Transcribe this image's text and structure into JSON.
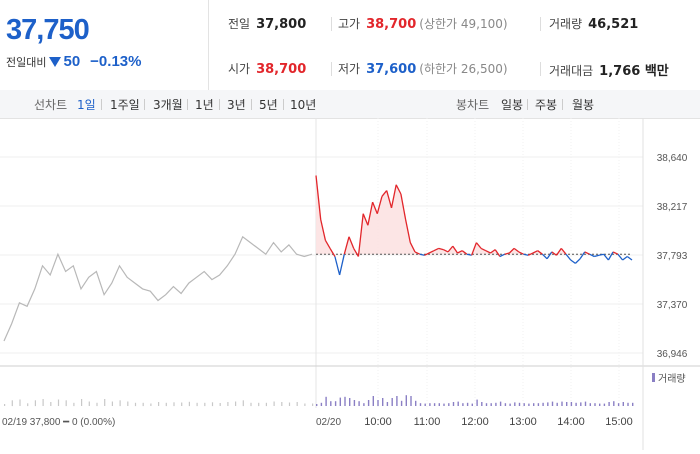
{
  "header": {
    "price": "37,750",
    "change_label": "전일대비",
    "change_value": "50",
    "change_percent": "−0.13%",
    "stats": {
      "prev_close": {
        "label": "전일",
        "value": "37,800"
      },
      "high": {
        "label": "고가",
        "value": "38,700",
        "sub": "(상한가 49,100)"
      },
      "volume": {
        "label": "거래량",
        "value": "46,521"
      },
      "open": {
        "label": "시가",
        "value": "38,700"
      },
      "low": {
        "label": "저가",
        "value": "37,600",
        "sub": "(하한가 26,500)"
      },
      "amount": {
        "label": "거래대금",
        "value": "1,766 백만"
      }
    }
  },
  "toolbar": {
    "line_label": "선차트",
    "line_periods": [
      "1일",
      "1주일",
      "3개월",
      "1년",
      "3년",
      "5년",
      "10년"
    ],
    "selected_period": "1일",
    "candle_label": "봉차트",
    "candle_periods": [
      "일봉",
      "주봉",
      "월봉"
    ]
  },
  "chart_data": {
    "type": "line",
    "price_ticks": [
      "38,640",
      "38,217",
      "37,793",
      "37,370",
      "36,946"
    ],
    "ylim": [
      36946,
      38640
    ],
    "baseline": 37800,
    "time_ticks": [
      "10:00",
      "11:00",
      "12:00",
      "13:00",
      "14:00",
      "15:00"
    ],
    "today_date": "02/20",
    "prev_day_caption": "02/19  37,800 ━ 0 (0.00%)",
    "volume_legend": "거래량",
    "colors": {
      "up": "#e2262b",
      "down": "#1d60c9",
      "prev": "#b8b8b8",
      "volume": "#8a7fc4"
    },
    "prev_day_series": [
      37050,
      37200,
      37380,
      37350,
      37500,
      37700,
      37620,
      37800,
      37650,
      37700,
      37500,
      37600,
      37650,
      37450,
      37550,
      37700,
      37600,
      37550,
      37500,
      37480,
      37400,
      37450,
      37520,
      37460,
      37550,
      37600,
      37650,
      37580,
      37620,
      37700,
      37800,
      37950,
      37900,
      37850,
      37800,
      37900,
      37820,
      37880,
      37800,
      37780,
      37800
    ],
    "today_series": [
      38480,
      38100,
      37920,
      37850,
      37780,
      37620,
      37800,
      37950,
      37850,
      37780,
      38150,
      38050,
      38250,
      38150,
      38300,
      38350,
      38200,
      38400,
      38320,
      38100,
      37900,
      37820,
      37800,
      37790,
      37810,
      37830,
      37850,
      37840,
      37820,
      37870,
      37810,
      37830,
      37800,
      37790,
      37900,
      37850,
      37830,
      37810,
      37840,
      37780,
      37800,
      37810,
      37850,
      37820,
      37800,
      37790,
      37810,
      37830,
      37800,
      37760,
      37820,
      37790,
      37850,
      37800,
      37750,
      37720,
      37760,
      37820,
      37800,
      37780,
      37790,
      37800,
      37750,
      37820,
      37800,
      37750,
      37780,
      37750
    ]
  }
}
